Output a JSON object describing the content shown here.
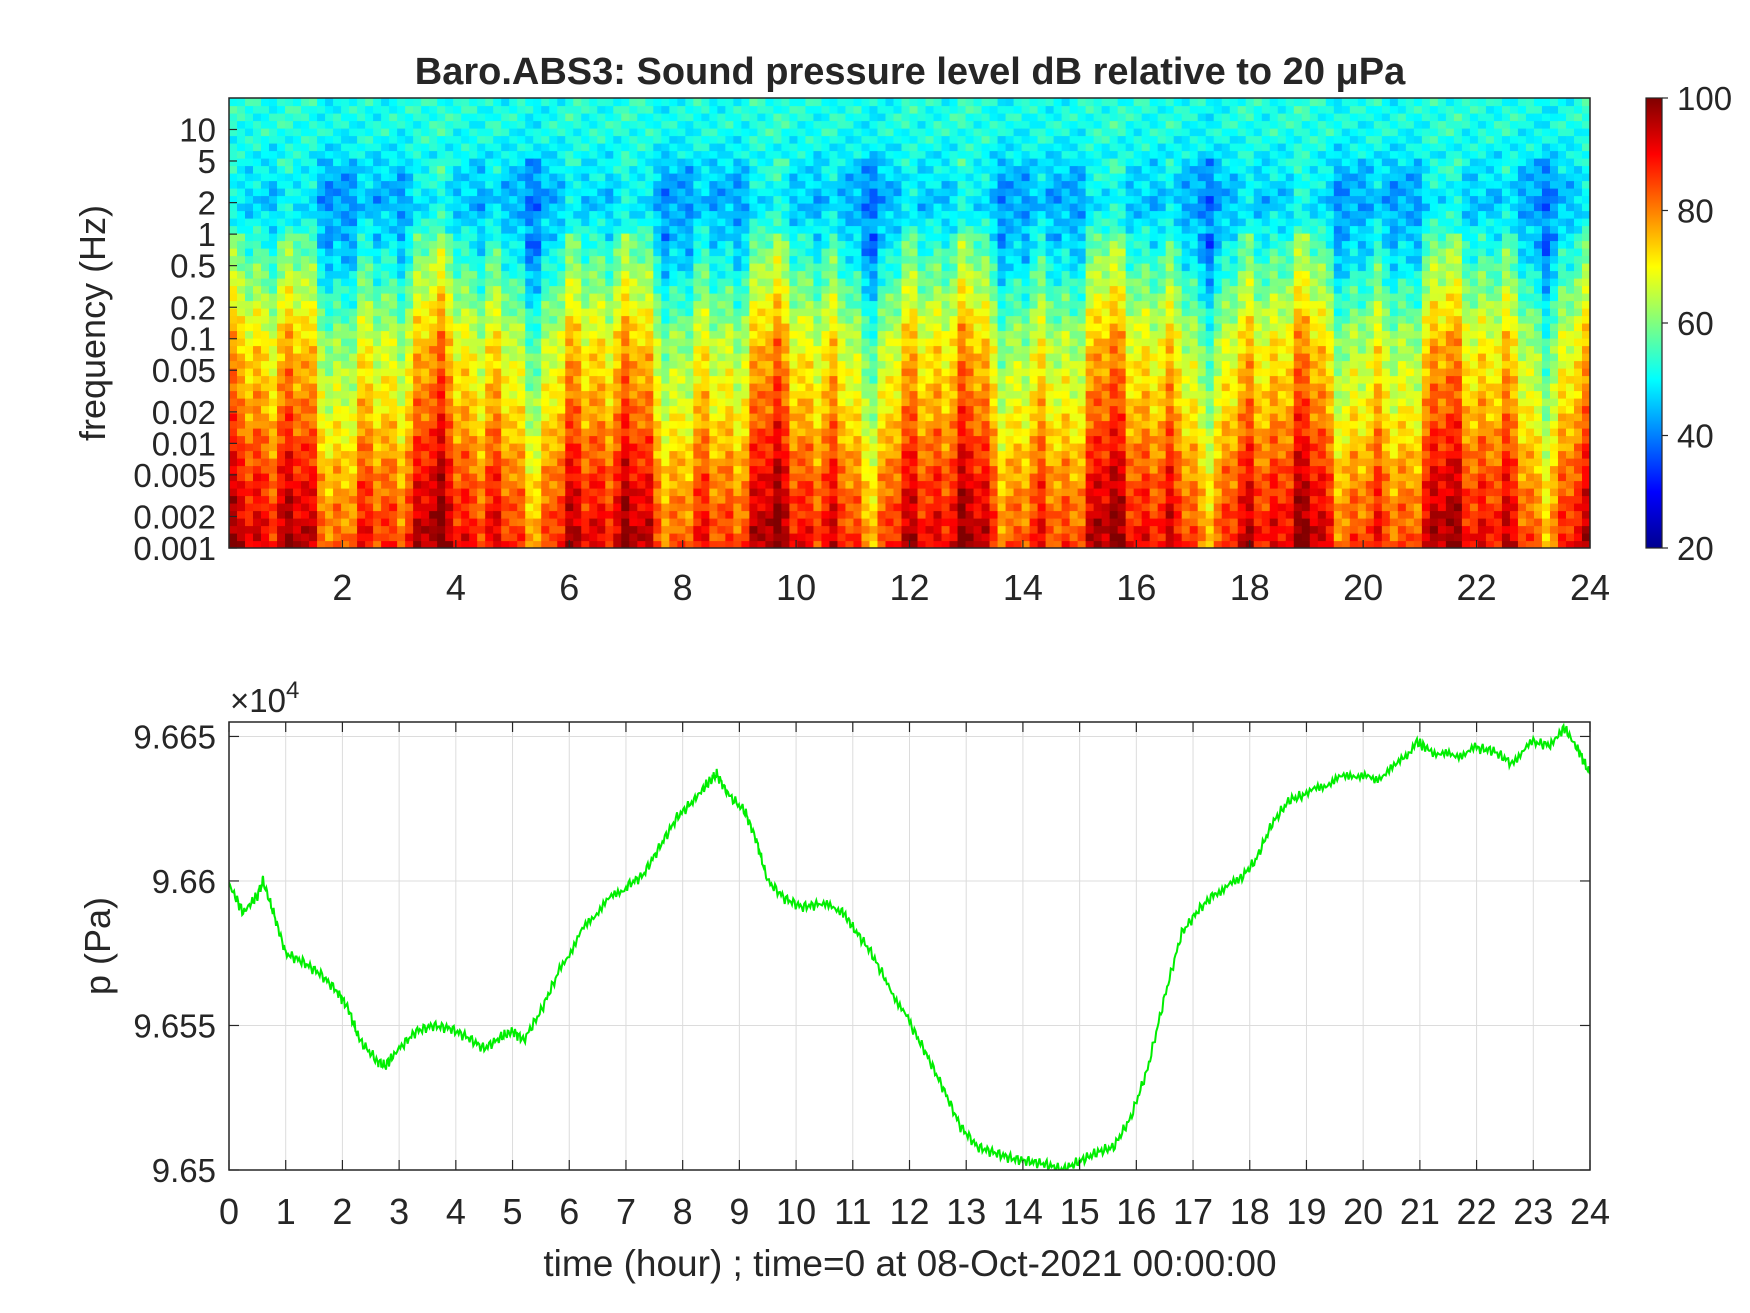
{
  "chart_data": [
    {
      "type": "heatmap",
      "title": "Baro.ABS3: Sound pressure level dB relative to 20 μPa",
      "xlabel": "",
      "ylabel": "frequency (Hz)",
      "xlim": [
        0,
        24
      ],
      "x_ticks": [
        "2",
        "4",
        "6",
        "8",
        "10",
        "12",
        "14",
        "16",
        "18",
        "20",
        "22",
        "24"
      ],
      "y_scale": "log",
      "ylim": [
        0.001,
        20
      ],
      "y_ticks": [
        "0.001",
        "0.002",
        "0.005",
        "0.01",
        "0.02",
        "0.05",
        "0.1",
        "0.2",
        "0.5",
        "1",
        "2",
        "5",
        "10"
      ],
      "colormap": "jet",
      "colorbar": {
        "range": [
          20,
          100
        ],
        "ticks": [
          "20",
          "40",
          "60",
          "80",
          "100"
        ]
      },
      "approx_levels_db": {
        "frequency_hz": [
          10,
          2,
          0.5,
          0.1,
          0.02,
          0.005,
          0.001
        ],
        "level_db": [
          52,
          45,
          55,
          68,
          75,
          83,
          90
        ]
      }
    },
    {
      "type": "line",
      "xlabel": "time (hour) ; time=0 at 08-Oct-2021 00:00:00",
      "ylabel": "p (Pa)",
      "xlim": [
        0,
        24
      ],
      "ylim": [
        9.65,
        9.6655
      ],
      "y_exponent_label": "×10",
      "y_exponent_power": "4",
      "x_ticks": [
        "0",
        "1",
        "2",
        "3",
        "4",
        "5",
        "6",
        "7",
        "8",
        "9",
        "10",
        "11",
        "12",
        "13",
        "14",
        "15",
        "16",
        "17",
        "18",
        "19",
        "20",
        "21",
        "22",
        "23",
        "24"
      ],
      "y_ticks": [
        "9.65",
        "9.655",
        "9.66",
        "9.665"
      ],
      "grid": true,
      "series": [
        {
          "color": "#00ee00",
          "x": [
            0,
            0.25,
            0.5,
            0.6,
            0.8,
            1,
            1.3,
            1.6,
            1.9,
            2.1,
            2.3,
            2.6,
            2.75,
            3,
            3.3,
            3.6,
            3.9,
            4.2,
            4.5,
            4.8,
            5.0,
            5.2,
            5.5,
            5.8,
            6.2,
            6.6,
            7.0,
            7.3,
            7.6,
            7.9,
            8.2,
            8.45,
            8.6,
            8.8,
            9.1,
            9.3,
            9.5,
            9.8,
            10.1,
            10.4,
            10.8,
            11.0,
            11.3,
            11.6,
            12.0,
            12.3,
            12.6,
            12.9,
            13.2,
            13.5,
            13.8,
            14.1,
            14.4,
            14.7,
            15.0,
            15.3,
            15.6,
            15.9,
            16.2,
            16.5,
            16.8,
            17.1,
            17.4,
            17.8,
            18.1,
            18.4,
            18.7,
            19.0,
            19.4,
            19.8,
            20.2,
            20.6,
            20.95,
            21.2,
            21.6,
            22.0,
            22.3,
            22.6,
            23.0,
            23.3,
            23.55,
            23.8,
            24.0
          ],
          "y": [
            9.6599,
            9.6589,
            9.6595,
            9.66,
            9.6588,
            9.6575,
            9.6572,
            9.6568,
            9.6562,
            9.6556,
            9.6545,
            9.6538,
            9.6536,
            9.6542,
            9.6548,
            9.655,
            9.6549,
            9.6546,
            9.6542,
            9.6546,
            9.6548,
            9.6545,
            9.6555,
            9.6568,
            9.6582,
            9.6592,
            9.6598,
            9.6602,
            9.6612,
            9.6622,
            9.6628,
            9.6634,
            9.6637,
            9.663,
            9.6624,
            9.6614,
            9.66,
            9.6594,
            9.6591,
            9.6592,
            9.659,
            9.6584,
            9.6576,
            9.6565,
            9.6551,
            9.654,
            9.6528,
            9.6515,
            9.6508,
            9.6506,
            9.6504,
            9.6503,
            9.6502,
            9.65,
            9.6503,
            9.6506,
            9.6508,
            9.6518,
            9.6535,
            9.656,
            9.6582,
            9.659,
            9.6596,
            9.66,
            9.6607,
            9.662,
            9.6628,
            9.663,
            9.6634,
            9.6637,
            9.6635,
            9.664,
            9.6648,
            9.6645,
            9.6643,
            9.6646,
            9.6645,
            9.6641,
            9.6648,
            9.6647,
            9.6653,
            9.6645,
            9.6637
          ]
        }
      ]
    }
  ]
}
